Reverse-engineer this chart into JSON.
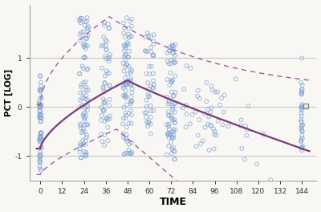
{
  "title": "",
  "xlabel": "TIME",
  "ylabel": "PCT [LOG]",
  "xlim": [
    -6,
    152
  ],
  "ylim": [
    -1.5,
    2.1
  ],
  "yticks": [
    -1,
    0,
    1
  ],
  "xticks": [
    0,
    12,
    24,
    36,
    48,
    60,
    72,
    84,
    96,
    108,
    120,
    132,
    144
  ],
  "grid_color": "#c8c8c8",
  "scatter_color": "#7b9fd4",
  "curve_color": "#7b3b7b",
  "dashed_color": "#9b4b9b",
  "background_color": "#f8f7f3",
  "seed": 123,
  "square_marker_x": 146,
  "square_marker_y": 0.02
}
